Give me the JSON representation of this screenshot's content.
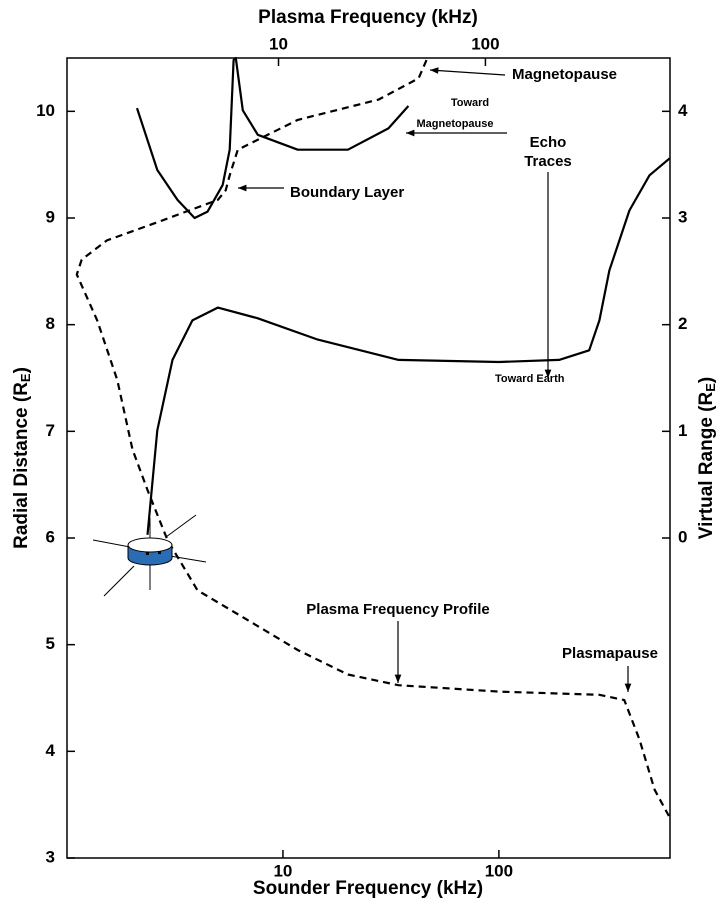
{
  "chart_data": {
    "type": "line",
    "xlabel": "Sounder Frequency (kHz)",
    "x2label": "Plasma Frequency (kHz)",
    "ylabel": [
      "Radial Distance (R",
      "E",
      ")"
    ],
    "y2label": [
      "Virtual Range (R",
      "E",
      ")"
    ],
    "xscale": "log",
    "x2scale": "log",
    "xlim": [
      1,
      620
    ],
    "xticks": [
      10,
      100
    ],
    "x2lim": [
      0.95,
      780
    ],
    "x2ticks": [
      10,
      100
    ],
    "ylim": [
      3,
      10.5
    ],
    "yticks": [
      3,
      4,
      5,
      6,
      7,
      8,
      9,
      10
    ],
    "y2lim": [
      -3,
      4.5
    ],
    "y2ticks": [
      0,
      1,
      2,
      3,
      4
    ],
    "series": [
      {
        "color": "#000000",
        "dash": true,
        "x": [
          46.2,
          42.5,
          27.7,
          11.7,
          6.18,
          5.67,
          5.43,
          4.99,
          2.62,
          1.53,
          1.17,
          1.11,
          1.38,
          1.71,
          2.01,
          2.36,
          2.92,
          4.02,
          6.87,
          11.7,
          20.0,
          34.3,
          100,
          292,
          381,
          448,
          526,
          618
        ],
        "values": [
          10.48,
          10.31,
          10.11,
          9.92,
          9.64,
          9.4,
          9.26,
          9.17,
          8.96,
          8.79,
          8.61,
          8.47,
          8.04,
          7.48,
          6.83,
          6.45,
          5.98,
          5.51,
          5.23,
          4.95,
          4.72,
          4.62,
          4.56,
          4.53,
          4.48,
          4.11,
          3.64,
          3.38
        ]
      },
      {
        "color": "#000000",
        "dash": false,
        "x": [
          2.36,
          2.62,
          3.08,
          3.81,
          4.99,
          7.65,
          14.5,
          34.3,
          100,
          190,
          262,
          292,
          325,
          402,
          498,
          618
        ],
        "values": [
          6.03,
          7.01,
          7.67,
          8.04,
          8.16,
          8.06,
          7.86,
          7.67,
          7.65,
          7.67,
          7.76,
          8.04,
          8.51,
          9.07,
          9.4,
          9.56
        ]
      },
      {
        "color": "#000000",
        "dash": false,
        "x": [
          2.11,
          2.62,
          3.25,
          3.9,
          4.48,
          5.26,
          5.67,
          5.91,
          6.05,
          6.52,
          7.65,
          11.7,
          20.0,
          30.8,
          38.1
        ],
        "values": [
          10.03,
          9.45,
          9.17,
          9.0,
          9.06,
          9.31,
          9.64,
          10.48,
          10.5,
          10.01,
          9.78,
          9.64,
          9.64,
          9.84,
          10.05
        ]
      }
    ],
    "annotations": [
      "Magnetopause",
      [
        "Toward",
        "Magnetopause"
      ],
      [
        "Echo",
        "Traces"
      ],
      "Boundary Layer",
      "Toward Earth",
      "Plasma Frequency Profile",
      "Plasmapause"
    ]
  }
}
